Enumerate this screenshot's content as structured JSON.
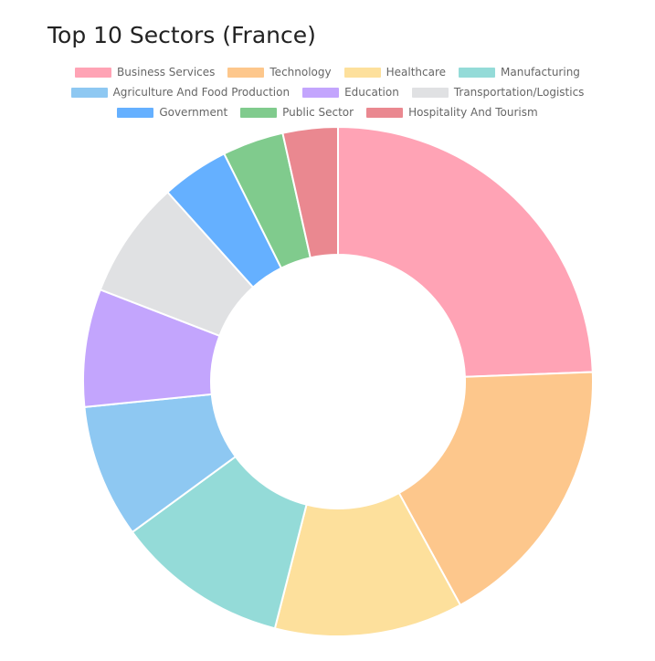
{
  "title": "Top 10 Sectors (France)",
  "chart_data": {
    "type": "doughnut",
    "title": "Top 10 Sectors (France)",
    "legend_position": "top",
    "series": [
      {
        "labels": [
          "Business Services",
          "Technology",
          "Healthcare",
          "Manufacturing",
          "Agriculture And Food Production",
          "Education",
          "Transportation/Logistics",
          "Government",
          "Public Sector",
          "Hospitality And Tourism"
        ],
        "values": [
          24.5,
          17.7,
          12.0,
          11.0,
          8.5,
          7.5,
          7.5,
          4.3,
          3.9,
          3.5
        ],
        "colors": [
          "#ffa3b5",
          "#fdc78c",
          "#fde09c",
          "#94dbd8",
          "#8ec8f2",
          "#c3a5fd",
          "#e0e1e3",
          "#65b0ff",
          "#80cb8d",
          "#ea8890"
        ]
      }
    ]
  },
  "legend_rows": [
    [
      0,
      1,
      2,
      3
    ],
    [
      4,
      5,
      6
    ],
    [
      7,
      8,
      9
    ]
  ]
}
